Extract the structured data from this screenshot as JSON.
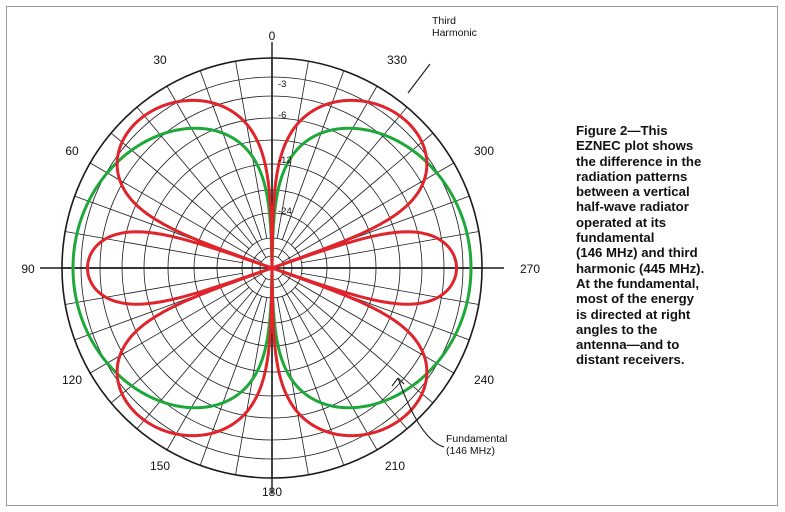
{
  "colors": {
    "third_harmonic": "#e0242b",
    "fundamental": "#1fa83a",
    "grid": "#1a1a1a",
    "text": "#111111"
  },
  "chart_data": {
    "type": "polar",
    "angle_ticks": [
      "0",
      "30",
      "60",
      "90",
      "120",
      "150",
      "180",
      "210",
      "240",
      "270",
      "300",
      "330"
    ],
    "radial_ticks": [
      "-3",
      "-6",
      "-12",
      "-24"
    ],
    "radial_unit": "dB",
    "grid": true,
    "series": [
      {
        "name": "Third Harmonic",
        "color": "#e0242b",
        "description_pattern": "vertical half-wave radiator at 3rd harmonic, lobes at 0/±49/±90-ish",
        "lobes_deg": [
          35,
          90,
          145
        ],
        "lobe_gain_db": [
          0,
          -7.5,
          0
        ]
      },
      {
        "name": "Fundamental (146 MHz)",
        "color": "#1fa83a",
        "max_gain_db": 0,
        "max_direction_deg": 90
      }
    ],
    "annotations": [
      {
        "id": "third",
        "lines": [
          "Third",
          "Harmonic"
        ]
      },
      {
        "id": "fund",
        "lines": [
          "Fundamental",
          "(146 MHz)"
        ]
      }
    ]
  },
  "caption": {
    "lines": [
      "Figure 2—This",
      "EZNEC plot shows",
      "the difference in the",
      "radiation patterns",
      "between a  vertical",
      "half-wave radiator",
      "operated at its",
      "fundamental",
      "(146 MHz) and third",
      "harmonic (445 MHz).",
      "At the fundamental,",
      "most of the energy",
      "is directed at right",
      "angles to the",
      "antenna—and to",
      "distant receivers."
    ]
  }
}
